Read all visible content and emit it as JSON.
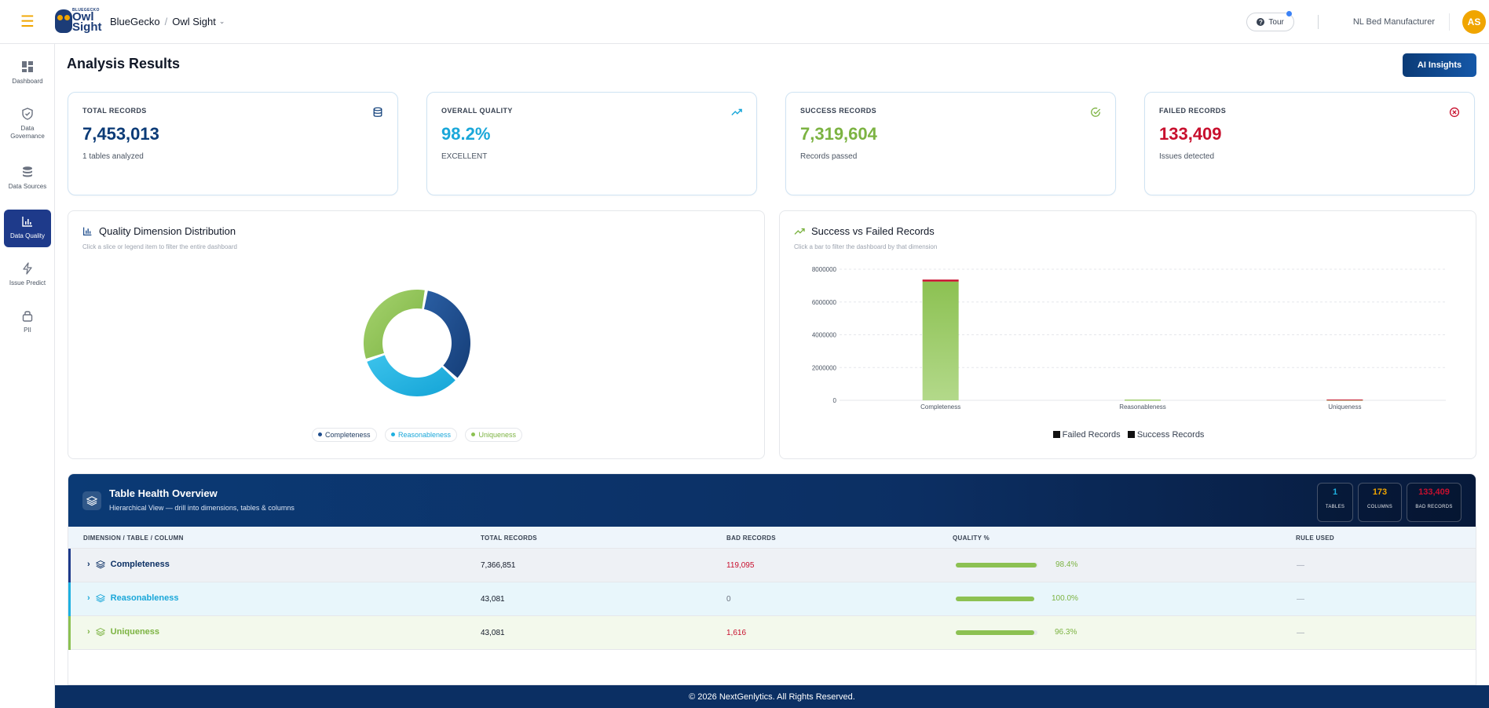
{
  "header": {
    "brand_logo_small": "BLUEGECKO",
    "brand_logo_big": "Owl Sight",
    "org_crumb": "BlueGecko",
    "product_crumb": "Owl Sight",
    "tour_label": "Tour",
    "org_name": "NL Bed Manufacturer",
    "avatar_initials": "AS"
  },
  "sidebar": {
    "items": [
      {
        "label": "Dashboard",
        "icon": "grid-icon"
      },
      {
        "label": "Data Governance",
        "icon": "shield-icon"
      },
      {
        "label": "Data Sources",
        "icon": "database-icon"
      },
      {
        "label": "Data Quality",
        "icon": "bar-chart-icon",
        "active": true
      },
      {
        "label": "Issue Predict",
        "icon": "bolt-icon"
      },
      {
        "label": "PII",
        "icon": "lock-icon"
      }
    ]
  },
  "page": {
    "title": "Analysis Results",
    "ai_button": "AI Insights"
  },
  "kpis": [
    {
      "label": "TOTAL RECORDS",
      "value": "7,453,013",
      "sub": "1 tables analyzed",
      "color": "#0b3b77",
      "icon": "database-icon"
    },
    {
      "label": "OVERALL QUALITY",
      "value": "98.2%",
      "sub": "EXCELLENT",
      "color": "#1aa7d9",
      "icon": "trending-up-icon"
    },
    {
      "label": "SUCCESS RECORDS",
      "value": "7,319,604",
      "sub": "Records passed",
      "color": "#7cb342",
      "icon": "check-circle-icon"
    },
    {
      "label": "FAILED RECORDS",
      "value": "133,409",
      "sub": "Issues detected",
      "color": "#c8102e",
      "icon": "x-circle-icon"
    }
  ],
  "donut_panel": {
    "title": "Quality Dimension Distribution",
    "subtitle": "Click a slice or legend item to filter the entire dashboard",
    "legend": [
      {
        "label": "Completeness",
        "color": "#1e4d8c"
      },
      {
        "label": "Reasonableness",
        "color": "#1eb0e0"
      },
      {
        "label": "Uniqueness",
        "color": "#8cc152"
      }
    ]
  },
  "bar_panel": {
    "title": "Success vs Failed Records",
    "subtitle": "Click a bar to filter the dashboard by that dimension",
    "legend_failed": "Failed Records",
    "legend_success": "Success Records"
  },
  "chart_data": [
    {
      "type": "pie",
      "categories": [
        "Completeness",
        "Reasonableness",
        "Uniqueness"
      ],
      "values": [
        34,
        33,
        33
      ],
      "colors": [
        "#1e4d8c",
        "#1eb0e0",
        "#8cc152"
      ],
      "donut": true
    },
    {
      "type": "bar",
      "stacked": true,
      "categories": [
        "Completeness",
        "Reasonableness",
        "Uniqueness"
      ],
      "series": [
        {
          "name": "Success Records",
          "values": [
            7247756,
            43081,
            41465
          ],
          "color": "#8cc152"
        },
        {
          "name": "Failed Records",
          "values": [
            119095,
            0,
            1616
          ],
          "color": "#c8102e"
        }
      ],
      "yticks": [
        "0",
        "2000000",
        "4000000",
        "6000000",
        "8000000"
      ],
      "ylim": [
        0,
        8000000
      ],
      "grid": true,
      "legend": "bottom"
    }
  ],
  "health": {
    "title": "Table Health Overview",
    "subtitle": "Hierarchical View — drill into dimensions, tables & columns",
    "stats": [
      {
        "value": "1",
        "label": "TABLES",
        "color": "#1eb0e0"
      },
      {
        "value": "173",
        "label": "COLUMNS",
        "color": "#f0a500"
      },
      {
        "value": "133,409",
        "label": "BAD RECORDS",
        "color": "#c8102e"
      }
    ],
    "columns": [
      "DIMENSION / TABLE / COLUMN",
      "TOTAL RECORDS",
      "BAD RECORDS",
      "QUALITY %",
      "RULE USED"
    ],
    "rows": [
      {
        "name": "Completeness",
        "total": "7,366,851",
        "bad": "119,095",
        "quality": "98.4%",
        "quality_fraction": 0.984,
        "rule": "—",
        "accent": "#1e3a8a",
        "bg": "#eef1f5",
        "bad_color": "#c8102e"
      },
      {
        "name": "Reasonableness",
        "total": "43,081",
        "bad": "0",
        "quality": "100.0%",
        "quality_fraction": 1.0,
        "rule": "—",
        "accent": "#1eb0e0",
        "bg": "#e8f6fb",
        "bad_color": "#6b7280"
      },
      {
        "name": "Uniqueness",
        "total": "43,081",
        "bad": "1,616",
        "quality": "96.3%",
        "quality_fraction": 0.963,
        "rule": "—",
        "accent": "#8cc152",
        "bg": "#f3f9ec",
        "bad_color": "#c8102e"
      }
    ]
  },
  "footer": {
    "text": "© 2026 NextGenlytics. All Rights Reserved."
  }
}
